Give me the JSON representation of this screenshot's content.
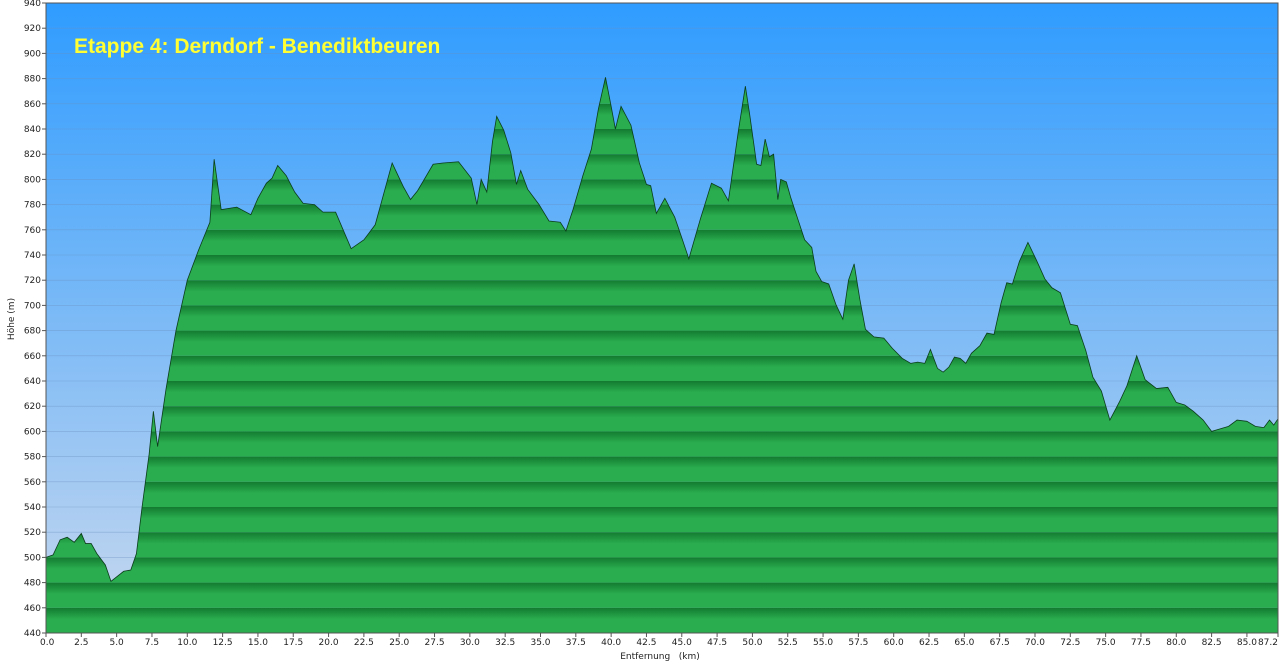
{
  "chart_data": {
    "type": "area",
    "title": "Etappe 4: Derndorf - Benediktbeuren",
    "xlabel": "Entfernung   (km)",
    "ylabel": "Höhe (m)",
    "xlim": [
      0,
      87.2
    ],
    "ylim": [
      440,
      940
    ],
    "x_ticks": [
      "0.0",
      "2.5",
      "5.0",
      "7.5",
      "10.0",
      "12.5",
      "15.0",
      "17.5",
      "20.0",
      "22.5",
      "25.0",
      "27.5",
      "30.0",
      "32.5",
      "35.0",
      "37.5",
      "40.0",
      "42.5",
      "45.0",
      "47.5",
      "50.0",
      "52.5",
      "55.0",
      "57.5",
      "60.0",
      "62.5",
      "65.0",
      "67.5",
      "70.0",
      "72.5",
      "75.0",
      "77.5",
      "80.0",
      "82.5",
      "85.0",
      "87.2"
    ],
    "y_ticks": [
      "440",
      "460",
      "480",
      "500",
      "520",
      "540",
      "560",
      "580",
      "600",
      "620",
      "640",
      "660",
      "680",
      "700",
      "720",
      "740",
      "760",
      "780",
      "800",
      "820",
      "840",
      "860",
      "880",
      "900",
      "920",
      "940"
    ],
    "grid": true,
    "colors": {
      "sky_top": "#2f9cff",
      "sky_bottom": "#c8d8ee",
      "area_light": "#2aad4f",
      "area_dark": "#137a30",
      "title": "#ffff33",
      "gridline": "#6b8fbf"
    },
    "x": [
      0,
      0.5,
      1,
      1.5,
      2,
      2.5,
      2.8,
      3.2,
      3.6,
      4.2,
      4.6,
      5.5,
      6,
      6.4,
      6.8,
      7.3,
      7.6,
      7.9,
      8.5,
      9.2,
      10,
      10.8,
      11.6,
      11.9,
      12.4,
      13.5,
      14.5,
      15,
      15.6,
      16,
      16.4,
      17,
      17.6,
      18.2,
      19,
      19.6,
      20.5,
      21.6,
      22.5,
      23.3,
      24.5,
      25.3,
      25.8,
      26.3,
      27.4,
      28.1,
      29.2,
      30.1,
      30.5,
      30.8,
      31.2,
      31.6,
      31.9,
      32.4,
      32.9,
      33.3,
      33.6,
      34.1,
      34.9,
      35.6,
      36.4,
      36.8,
      37.3,
      38,
      38.6,
      39.1,
      39.6,
      40,
      40.3,
      40.7,
      41.4,
      42,
      42.5,
      42.8,
      43.2,
      43.8,
      44.5,
      44.9,
      45.5,
      46.3,
      47.1,
      47.8,
      48.3,
      49,
      49.5,
      49.8,
      50.3,
      50.6,
      50.9,
      51.2,
      51.5,
      51.8,
      52,
      52.4,
      52.7,
      53.2,
      53.7,
      54.2,
      54.5,
      54.9,
      55.4,
      55.9,
      56.4,
      56.8,
      57.2,
      57.6,
      58,
      58.6,
      59.3,
      59.9,
      60.6,
      61.2,
      61.7,
      62.2,
      62.6,
      63.1,
      63.5,
      63.9,
      64.3,
      64.7,
      65.1,
      65.5,
      66.1,
      66.6,
      67.1,
      67.6,
      68,
      68.4,
      68.9,
      69.5,
      70.1,
      70.7,
      71.2,
      71.8,
      72.5,
      73,
      73.6,
      74.1,
      74.7,
      75.3,
      76,
      76.5,
      77.2,
      77.8,
      78.6,
      79.4,
      80,
      80.6,
      81.2,
      81.9,
      82.5,
      83.1,
      83.7,
      84.3,
      85,
      85.6,
      86.2,
      86.6,
      86.9,
      87.2
    ],
    "values": [
      500,
      502,
      514,
      516,
      512,
      519,
      511,
      511,
      503,
      494,
      481,
      489,
      490,
      503,
      540,
      582,
      616,
      588,
      634,
      680,
      720,
      744,
      766,
      816,
      776,
      778,
      772,
      785,
      797,
      801,
      811,
      803,
      790,
      781,
      780,
      774,
      774,
      745,
      752,
      764,
      813,
      794,
      784,
      791,
      812,
      813,
      814,
      801,
      780,
      800,
      790,
      830,
      850,
      839,
      821,
      796,
      807,
      792,
      780,
      767,
      766,
      759,
      776,
      803,
      824,
      856,
      881,
      858,
      840,
      858,
      843,
      813,
      796,
      795,
      773,
      785,
      770,
      757,
      737,
      768,
      797,
      793,
      783,
      838,
      874,
      852,
      812,
      811,
      832,
      818,
      820,
      784,
      800,
      798,
      786,
      769,
      752,
      746,
      727,
      719,
      717,
      701,
      689,
      720,
      733,
      705,
      681,
      675,
      674,
      666,
      658,
      654,
      655,
      654,
      665,
      650,
      647,
      651,
      659,
      658,
      654,
      662,
      668,
      678,
      677,
      702,
      718,
      717,
      735,
      750,
      736,
      721,
      714,
      710,
      685,
      684,
      664,
      643,
      632,
      609,
      624,
      636,
      660,
      641,
      634,
      635,
      623,
      621,
      616,
      609,
      600,
      602,
      604,
      609,
      608,
      604,
      603,
      609,
      605,
      610
    ]
  }
}
